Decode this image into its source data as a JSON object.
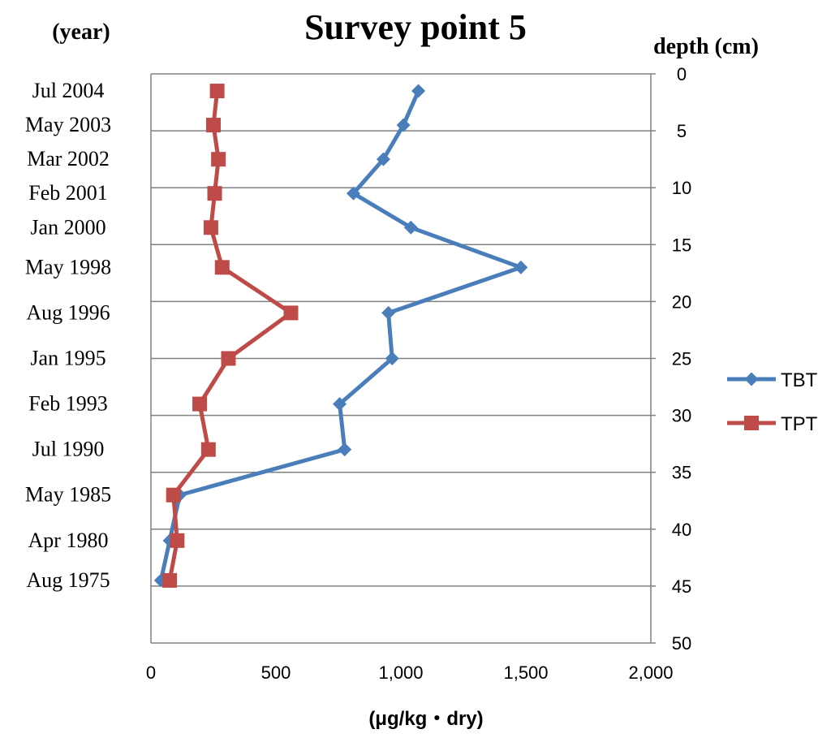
{
  "chart_data": {
    "type": "line",
    "title": "Survey point 5",
    "year_axis_label": "(year)",
    "depth_axis_label": "depth (cm)",
    "xlabel": "(μg/kg・dry)",
    "xlim": [
      0,
      2000
    ],
    "x_ticks": [
      0,
      500,
      1000,
      1500,
      2000
    ],
    "x_tick_labels": [
      "0",
      "500",
      "1,000",
      "1,500",
      "2,000"
    ],
    "depth_lim": [
      0,
      50
    ],
    "depth_ticks": [
      0,
      5,
      10,
      15,
      20,
      25,
      30,
      35,
      40,
      45,
      50
    ],
    "depth_tick_labels": [
      "0",
      "5",
      "10",
      "15",
      "20",
      "25",
      "30",
      "35",
      "40",
      "45",
      "50"
    ],
    "grid": true,
    "legend_position": "right",
    "year_labels": [
      {
        "label": "Jul 2004",
        "depth": 1.5
      },
      {
        "label": "May 2003",
        "depth": 4.5
      },
      {
        "label": "Mar 2002",
        "depth": 7.5
      },
      {
        "label": "Feb 2001",
        "depth": 10.5
      },
      {
        "label": "Jan 2000",
        "depth": 13.5
      },
      {
        "label": "May 1998",
        "depth": 17
      },
      {
        "label": "Aug 1996",
        "depth": 21
      },
      {
        "label": "Jan 1995",
        "depth": 25
      },
      {
        "label": "Feb 1993",
        "depth": 29
      },
      {
        "label": "Jul 1990",
        "depth": 33
      },
      {
        "label": "May 1985",
        "depth": 37
      },
      {
        "label": "Apr 1980",
        "depth": 41
      },
      {
        "label": "Aug 1975",
        "depth": 44.5
      }
    ],
    "series": [
      {
        "name": "TBT",
        "color": "#4a7ebb",
        "marker": "diamond",
        "points": [
          {
            "value": 1070,
            "depth": 1.5
          },
          {
            "value": 1010,
            "depth": 4.5
          },
          {
            "value": 930,
            "depth": 7.5
          },
          {
            "value": 810,
            "depth": 10.5
          },
          {
            "value": 1040,
            "depth": 13.5
          },
          {
            "value": 1480,
            "depth": 17
          },
          {
            "value": 950,
            "depth": 21
          },
          {
            "value": 965,
            "depth": 25
          },
          {
            "value": 755,
            "depth": 29
          },
          {
            "value": 775,
            "depth": 33
          },
          {
            "value": 115,
            "depth": 37
          },
          {
            "value": 75,
            "depth": 41
          },
          {
            "value": 40,
            "depth": 44.5
          }
        ]
      },
      {
        "name": "TPT",
        "color": "#be4b48",
        "marker": "square",
        "points": [
          {
            "value": 265,
            "depth": 1.5
          },
          {
            "value": 250,
            "depth": 4.5
          },
          {
            "value": 270,
            "depth": 7.5
          },
          {
            "value": 255,
            "depth": 10.5
          },
          {
            "value": 240,
            "depth": 13.5
          },
          {
            "value": 285,
            "depth": 17
          },
          {
            "value": 560,
            "depth": 21
          },
          {
            "value": 310,
            "depth": 25
          },
          {
            "value": 195,
            "depth": 29
          },
          {
            "value": 230,
            "depth": 33
          },
          {
            "value": 90,
            "depth": 37
          },
          {
            "value": 105,
            "depth": 41
          },
          {
            "value": 75,
            "depth": 44.5
          }
        ]
      }
    ]
  }
}
